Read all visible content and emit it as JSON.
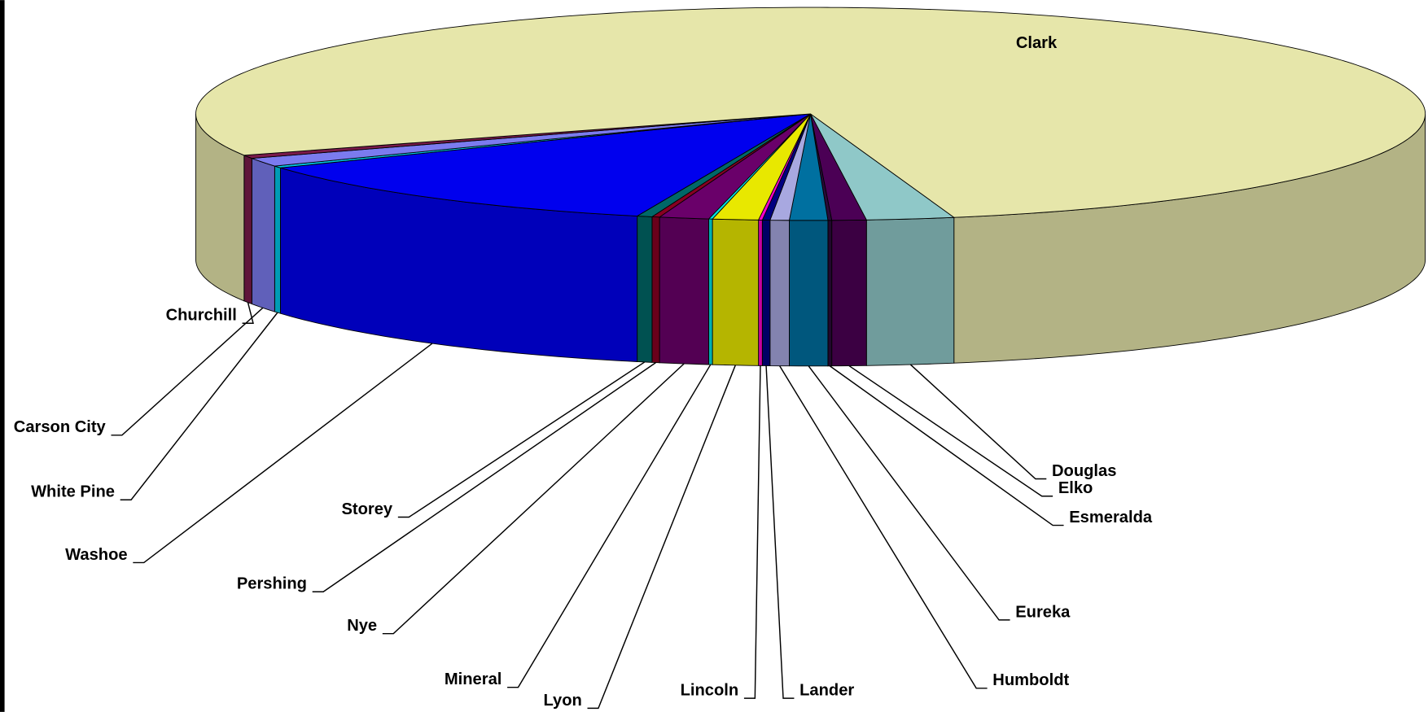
{
  "chart_data": {
    "type": "pie",
    "categories": [
      "Douglas",
      "Elko",
      "Esmeralda",
      "Eureka",
      "Humboldt",
      "Lander",
      "Lincoln",
      "Lyon",
      "Mineral",
      "Nye",
      "Pershing",
      "Storey",
      "Washoe",
      "White Pine",
      "Carson City",
      "Churchill",
      "Clark"
    ],
    "values": [
      2.3,
      0.9,
      0.1,
      1.0,
      0.5,
      0.2,
      0.1,
      1.2,
      0.1,
      1.3,
      0.2,
      0.4,
      12.0,
      0.3,
      1.3,
      0.5,
      77.6
    ],
    "colors": [
      "#8fc8c8",
      "#4b0055",
      "#2a0a3a",
      "#0070a0",
      "#a8a8e0",
      "#000080",
      "#ff00cc",
      "#e8e800",
      "#00e0e0",
      "#6a006a",
      "#880022",
      "#006868",
      "#0000ee",
      "#00c8e8",
      "#7b7bef",
      "#7a1a4a",
      "#e6e6aa"
    ]
  }
}
